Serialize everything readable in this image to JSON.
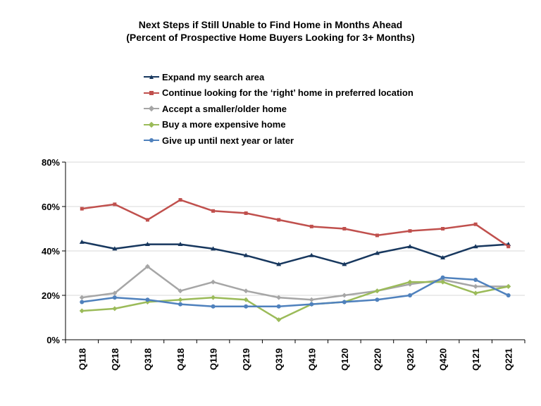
{
  "chart_data": {
    "type": "line",
    "title_line1": "Next Steps if Still Unable to Find Home in Months Ahead",
    "title_line2": "(Percent of Prospective Home Buyers Looking for 3+ Months)",
    "categories": [
      "Q118",
      "Q218",
      "Q318",
      "Q418",
      "Q119",
      "Q219",
      "Q319",
      "Q419",
      "Q120",
      "Q220",
      "Q320",
      "Q420",
      "Q121",
      "Q221"
    ],
    "ylim": [
      0,
      80
    ],
    "yticks": [
      0,
      20,
      40,
      60,
      80
    ],
    "ytick_labels": [
      "0%",
      "20%",
      "40%",
      "60%",
      "80%"
    ],
    "grid": true,
    "legend_position": "top",
    "series": [
      {
        "name": "Expand my search area",
        "color": "#17375E",
        "marker": "triangle",
        "values": [
          44,
          41,
          43,
          43,
          41,
          38,
          34,
          38,
          34,
          39,
          42,
          37,
          42,
          43
        ]
      },
      {
        "name": "Continue looking  for the ‘right’ home in preferred location",
        "color": "#C0504D",
        "marker": "square",
        "values": [
          59,
          61,
          54,
          63,
          58,
          57,
          54,
          51,
          50,
          47,
          49,
          50,
          52,
          42
        ]
      },
      {
        "name": "Accept a smaller/older home",
        "color": "#A6A6A6",
        "marker": "diamond",
        "values": [
          19,
          21,
          33,
          22,
          26,
          22,
          19,
          18,
          20,
          22,
          25,
          27,
          24,
          24
        ]
      },
      {
        "name": "Buy a more expensive home",
        "color": "#9BBB59",
        "marker": "diamond",
        "values": [
          13,
          14,
          17,
          18,
          19,
          18,
          9,
          16,
          17,
          22,
          26,
          26,
          21,
          24
        ]
      },
      {
        "name": "Give up until next year or later",
        "color": "#4F81BD",
        "marker": "circle",
        "values": [
          17,
          19,
          18,
          16,
          15,
          15,
          15,
          16,
          17,
          18,
          20,
          28,
          27,
          20
        ]
      }
    ]
  }
}
